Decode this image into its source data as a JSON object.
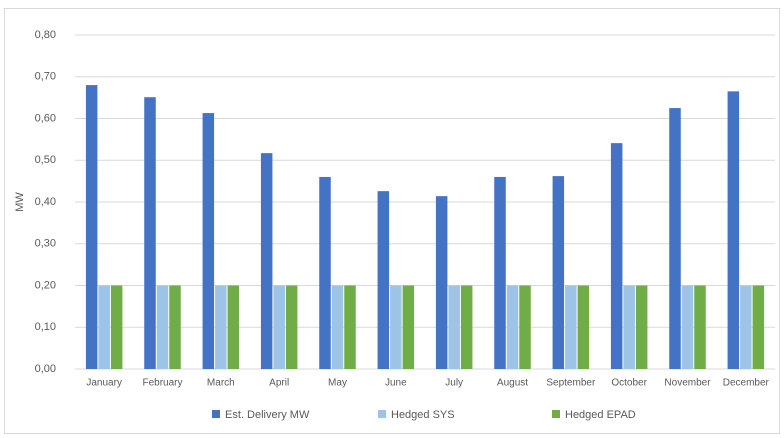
{
  "chart_data": {
    "type": "bar",
    "y_label": "MW",
    "categories": [
      "January",
      "February",
      "March",
      "April",
      "May",
      "June",
      "July",
      "August",
      "September",
      "October",
      "November",
      "December"
    ],
    "series": [
      {
        "name": "Est. Delivery MW",
        "color": "#4472c4",
        "values": [
          0.68,
          0.651,
          0.613,
          0.517,
          0.46,
          0.426,
          0.414,
          0.46,
          0.462,
          0.541,
          0.625,
          0.665
        ]
      },
      {
        "name": "Hedged SYS",
        "color": "#9dc3e6",
        "values": [
          0.2,
          0.2,
          0.2,
          0.2,
          0.2,
          0.2,
          0.2,
          0.2,
          0.2,
          0.2,
          0.2,
          0.2
        ]
      },
      {
        "name": "Hedged EPAD",
        "color": "#70ad47",
        "values": [
          0.2,
          0.2,
          0.2,
          0.2,
          0.2,
          0.2,
          0.2,
          0.2,
          0.2,
          0.2,
          0.2,
          0.2
        ]
      }
    ],
    "ylim": [
      0,
      0.8
    ],
    "yticks": [
      {
        "value": 0,
        "label": "0,00"
      },
      {
        "value": 0.1,
        "label": "0,10"
      },
      {
        "value": 0.2,
        "label": "0,20"
      },
      {
        "value": 0.3,
        "label": "0,30"
      },
      {
        "value": 0.4,
        "label": "0,40"
      },
      {
        "value": 0.5,
        "label": "0,50"
      },
      {
        "value": 0.6,
        "label": "0,60"
      },
      {
        "value": 0.7,
        "label": "0,70"
      },
      {
        "value": 0.8,
        "label": "0,80"
      }
    ],
    "grid": true,
    "legend": "bottom"
  }
}
